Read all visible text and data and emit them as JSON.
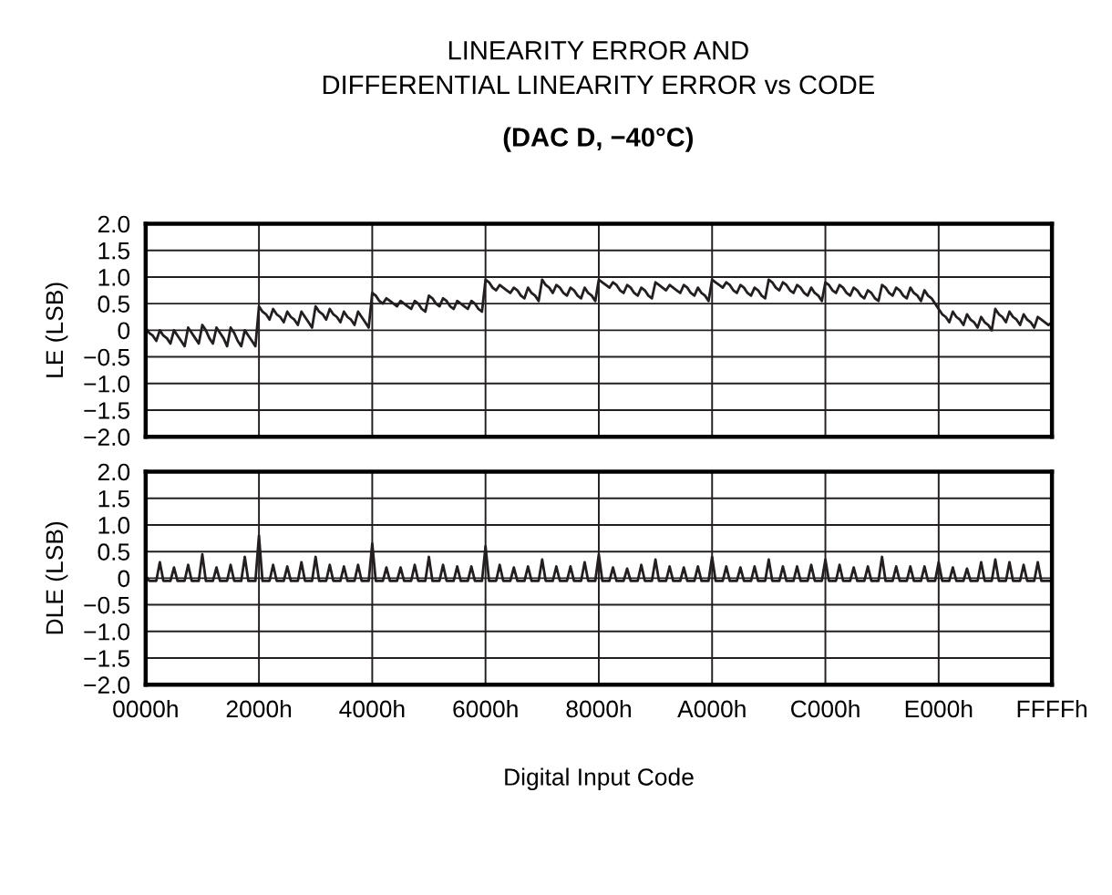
{
  "chart_data": [
    {
      "type": "line",
      "title": "LINEARITY ERROR AND\nDIFFERENTIAL LINEARITY ERROR vs CODE",
      "subtitle": "(DAC D, −40°C)",
      "ylabel": "LE (LSB)",
      "ylim": [
        -2.0,
        2.0
      ],
      "yticks": [
        {
          "value": 2.0,
          "label": "2.0"
        },
        {
          "value": 1.5,
          "label": "1.5"
        },
        {
          "value": 1.0,
          "label": "1.0"
        },
        {
          "value": 0.5,
          "label": "0.5"
        },
        {
          "value": 0,
          "label": "0"
        },
        {
          "value": -0.5,
          "label": "−0.5"
        },
        {
          "value": -1.0,
          "label": "−1.0"
        },
        {
          "value": -1.5,
          "label": "−1.5"
        },
        {
          "value": -2.0,
          "label": "−2.0"
        }
      ],
      "grid": true,
      "tick_labels": "y",
      "categories": [
        null,
        null,
        null,
        null,
        null,
        null,
        null,
        null,
        null,
        null,
        null,
        null,
        null,
        null,
        null,
        null,
        null,
        null,
        null,
        null,
        null,
        null,
        null,
        null,
        null,
        null,
        null,
        null,
        null,
        null,
        null,
        null,
        null,
        null,
        null,
        null,
        null,
        null,
        null,
        null,
        null,
        null,
        null,
        null,
        null,
        null,
        null,
        null,
        null,
        null,
        null,
        null,
        null,
        null,
        null,
        null,
        null,
        null,
        null,
        null,
        null,
        null,
        null,
        null,
        null,
        null,
        null,
        null,
        null,
        null,
        null,
        null,
        null,
        null,
        null,
        null,
        null,
        null,
        null,
        null,
        null,
        null,
        null,
        null,
        null,
        null,
        null,
        null,
        null,
        null,
        null,
        null,
        null,
        null,
        null,
        null,
        null,
        null,
        null,
        null,
        null,
        null,
        null,
        null,
        null,
        null,
        null,
        null,
        null,
        null,
        null,
        null,
        null,
        null,
        null,
        null,
        null,
        null,
        null,
        null,
        null,
        null,
        null,
        null,
        null,
        null,
        null,
        null,
        null,
        null,
        null,
        null,
        null,
        null,
        null,
        null,
        null,
        null,
        null,
        null,
        null,
        null,
        null,
        null,
        null,
        null,
        null,
        null,
        null,
        null,
        null,
        null,
        null,
        null,
        null,
        null,
        null,
        null,
        null,
        null,
        null,
        null,
        null,
        null,
        null,
        null,
        null,
        null,
        null,
        null,
        null,
        null,
        null,
        null,
        null,
        null,
        null,
        null,
        null,
        null,
        null,
        null,
        null,
        null,
        null,
        null,
        null,
        null,
        null,
        null,
        null,
        null,
        null,
        null,
        null,
        null,
        null,
        null,
        null,
        null,
        null,
        null,
        null,
        null,
        null,
        null,
        null,
        null,
        null,
        null,
        null,
        null,
        null,
        null,
        null,
        null,
        null,
        null,
        null,
        null,
        null,
        null,
        null,
        null,
        null,
        null,
        null,
        null,
        null,
        null,
        null,
        null,
        null,
        null,
        null,
        null,
        null,
        null,
        null,
        null,
        null,
        null,
        null,
        null,
        null,
        null,
        null,
        null,
        null,
        null,
        null,
        null,
        null,
        null,
        null,
        null,
        null
      ],
      "series": [
        {
          "color": "#231f20",
          "values": [
            0.05,
            -0.05,
            -0.1,
            -0.2,
            0,
            -0.1,
            -0.15,
            -0.25,
            0.0,
            -0.1,
            -0.2,
            -0.3,
            0.05,
            -0.05,
            -0.15,
            -0.25,
            0.1,
            0,
            -0.15,
            -0.25,
            0.05,
            -0.05,
            -0.15,
            -0.3,
            0.05,
            -0.05,
            -0.2,
            -0.3,
            0.0,
            -0.1,
            -0.2,
            -0.3,
            0.45,
            0.35,
            0.3,
            0.2,
            0.4,
            0.3,
            0.25,
            0.15,
            0.35,
            0.25,
            0.2,
            0.1,
            0.35,
            0.25,
            0.15,
            0.05,
            0.45,
            0.35,
            0.3,
            0.2,
            0.4,
            0.3,
            0.25,
            0.15,
            0.35,
            0.25,
            0.2,
            0.1,
            0.35,
            0.25,
            0.15,
            0.05,
            0.7,
            0.65,
            0.55,
            0.5,
            0.6,
            0.55,
            0.5,
            0.45,
            0.55,
            0.5,
            0.45,
            0.4,
            0.55,
            0.5,
            0.4,
            0.35,
            0.65,
            0.6,
            0.5,
            0.45,
            0.6,
            0.55,
            0.45,
            0.4,
            0.55,
            0.5,
            0.45,
            0.4,
            0.55,
            0.5,
            0.4,
            0.35,
            0.95,
            0.9,
            0.8,
            0.75,
            0.85,
            0.8,
            0.75,
            0.7,
            0.8,
            0.75,
            0.65,
            0.6,
            0.8,
            0.7,
            0.65,
            0.55,
            0.95,
            0.85,
            0.8,
            0.7,
            0.85,
            0.8,
            0.7,
            0.65,
            0.8,
            0.75,
            0.65,
            0.6,
            0.8,
            0.7,
            0.65,
            0.55,
            0.95,
            0.9,
            0.85,
            0.8,
            0.9,
            0.85,
            0.75,
            0.7,
            0.85,
            0.8,
            0.7,
            0.65,
            0.8,
            0.75,
            0.65,
            0.6,
            0.9,
            0.85,
            0.8,
            0.75,
            0.85,
            0.8,
            0.75,
            0.7,
            0.85,
            0.8,
            0.7,
            0.65,
            0.8,
            0.7,
            0.65,
            0.55,
            0.95,
            0.9,
            0.85,
            0.8,
            0.9,
            0.85,
            0.75,
            0.7,
            0.85,
            0.8,
            0.7,
            0.65,
            0.8,
            0.75,
            0.65,
            0.6,
            0.95,
            0.9,
            0.8,
            0.75,
            0.9,
            0.85,
            0.75,
            0.7,
            0.85,
            0.8,
            0.7,
            0.65,
            0.8,
            0.7,
            0.65,
            0.55,
            0.9,
            0.85,
            0.75,
            0.7,
            0.85,
            0.8,
            0.7,
            0.65,
            0.8,
            0.75,
            0.65,
            0.6,
            0.75,
            0.7,
            0.6,
            0.55,
            0.85,
            0.8,
            0.7,
            0.65,
            0.8,
            0.75,
            0.65,
            0.6,
            0.8,
            0.7,
            0.65,
            0.55,
            0.75,
            0.65,
            0.6,
            0.5,
            0.4,
            0.3,
            0.25,
            0.15,
            0.35,
            0.25,
            0.2,
            0.1,
            0.3,
            0.2,
            0.15,
            0.05,
            0.25,
            0.15,
            0.1,
            0.0,
            0.4,
            0.3,
            0.25,
            0.15,
            0.35,
            0.25,
            0.2,
            0.1,
            0.3,
            0.2,
            0.15,
            0.05,
            0.25,
            0.2,
            0.15,
            0.1,
            0.15
          ]
        }
      ]
    },
    {
      "type": "line",
      "xlabel": "Digital Input Code",
      "ylabel": "DLE (LSB)",
      "ylim": [
        -2.0,
        2.0
      ],
      "yticks": [
        {
          "value": 2.0,
          "label": "2.0"
        },
        {
          "value": 1.5,
          "label": "1.5"
        },
        {
          "value": 1.0,
          "label": "1.0"
        },
        {
          "value": 0.5,
          "label": "0.5"
        },
        {
          "value": 0,
          "label": "0"
        },
        {
          "value": -0.5,
          "label": "−0.5"
        },
        {
          "value": -1.0,
          "label": "−1.0"
        },
        {
          "value": -1.5,
          "label": "−1.5"
        },
        {
          "value": -2.0,
          "label": "−2.0"
        }
      ],
      "grid": true,
      "categories": [
        "0000h",
        null,
        null,
        null,
        null,
        null,
        null,
        null,
        null,
        null,
        null,
        null,
        null,
        null,
        null,
        null,
        null,
        null,
        null,
        null,
        null,
        null,
        null,
        null,
        null,
        null,
        null,
        null,
        null,
        null,
        null,
        null,
        "2000h",
        null,
        null,
        null,
        null,
        null,
        null,
        null,
        null,
        null,
        null,
        null,
        null,
        null,
        null,
        null,
        null,
        null,
        null,
        null,
        null,
        null,
        null,
        null,
        null,
        null,
        null,
        null,
        null,
        null,
        null,
        null,
        "4000h",
        null,
        null,
        null,
        null,
        null,
        null,
        null,
        null,
        null,
        null,
        null,
        null,
        null,
        null,
        null,
        null,
        null,
        null,
        null,
        null,
        null,
        null,
        null,
        null,
        null,
        null,
        null,
        null,
        null,
        null,
        null,
        "6000h",
        null,
        null,
        null,
        null,
        null,
        null,
        null,
        null,
        null,
        null,
        null,
        null,
        null,
        null,
        null,
        null,
        null,
        null,
        null,
        null,
        null,
        null,
        null,
        null,
        null,
        null,
        null,
        null,
        null,
        null,
        null,
        "8000h",
        null,
        null,
        null,
        null,
        null,
        null,
        null,
        null,
        null,
        null,
        null,
        null,
        null,
        null,
        null,
        null,
        null,
        null,
        null,
        null,
        null,
        null,
        null,
        null,
        null,
        null,
        null,
        null,
        null,
        null,
        null,
        "A000h",
        null,
        null,
        null,
        null,
        null,
        null,
        null,
        null,
        null,
        null,
        null,
        null,
        null,
        null,
        null,
        null,
        null,
        null,
        null,
        null,
        null,
        null,
        null,
        null,
        null,
        null,
        null,
        null,
        null,
        null,
        null,
        "C000h",
        null,
        null,
        null,
        null,
        null,
        null,
        null,
        null,
        null,
        null,
        null,
        null,
        null,
        null,
        null,
        null,
        null,
        null,
        null,
        null,
        null,
        null,
        null,
        null,
        null,
        null,
        null,
        null,
        null,
        null,
        null,
        "E000h",
        null,
        null,
        null,
        null,
        null,
        null,
        null,
        null,
        null,
        null,
        null,
        null,
        null,
        null,
        null,
        null,
        null,
        null,
        null,
        null,
        null,
        null,
        null,
        null,
        null,
        null,
        null,
        null,
        null,
        null,
        null,
        "FFFFh"
      ],
      "series": [
        {
          "color": "#231f20",
          "values": [
            0.05,
            -0.05,
            -0.05,
            -0.05,
            0.3,
            -0.05,
            -0.05,
            -0.05,
            0.2,
            -0.05,
            -0.05,
            -0.05,
            0.25,
            -0.05,
            -0.05,
            -0.05,
            0.45,
            -0.05,
            -0.05,
            -0.05,
            0.2,
            -0.05,
            -0.05,
            -0.05,
            0.25,
            -0.05,
            -0.05,
            -0.05,
            0.4,
            -0.05,
            -0.05,
            -0.05,
            0.8,
            -0.05,
            -0.05,
            -0.05,
            0.25,
            -0.05,
            -0.05,
            -0.05,
            0.22,
            -0.05,
            -0.05,
            -0.05,
            0.3,
            -0.05,
            -0.05,
            -0.05,
            0.4,
            -0.05,
            -0.05,
            -0.05,
            0.25,
            -0.05,
            -0.05,
            -0.05,
            0.22,
            -0.05,
            -0.05,
            -0.05,
            0.25,
            -0.05,
            -0.05,
            -0.05,
            0.65,
            -0.05,
            -0.05,
            -0.05,
            0.2,
            -0.05,
            -0.05,
            -0.05,
            0.2,
            -0.05,
            -0.05,
            -0.05,
            0.25,
            -0.05,
            -0.05,
            -0.05,
            0.4,
            -0.05,
            -0.05,
            -0.05,
            0.25,
            -0.05,
            -0.05,
            -0.05,
            0.22,
            -0.05,
            -0.05,
            -0.05,
            0.22,
            -0.05,
            -0.05,
            -0.05,
            0.6,
            -0.05,
            -0.05,
            -0.05,
            0.25,
            -0.05,
            -0.05,
            -0.05,
            0.2,
            -0.05,
            -0.05,
            -0.05,
            0.22,
            -0.05,
            -0.05,
            -0.05,
            0.35,
            -0.05,
            -0.05,
            -0.05,
            0.22,
            -0.05,
            -0.05,
            -0.05,
            0.22,
            -0.05,
            -0.05,
            -0.05,
            0.3,
            -0.05,
            -0.05,
            -0.05,
            0.45,
            -0.05,
            -0.05,
            -0.05,
            0.2,
            -0.05,
            -0.05,
            -0.05,
            0.18,
            -0.05,
            -0.05,
            -0.05,
            0.25,
            -0.05,
            -0.05,
            -0.05,
            0.35,
            -0.05,
            -0.05,
            -0.05,
            0.22,
            -0.05,
            -0.05,
            -0.05,
            0.2,
            -0.05,
            -0.05,
            -0.05,
            0.22,
            -0.05,
            -0.05,
            -0.05,
            0.4,
            -0.05,
            -0.05,
            -0.05,
            0.22,
            -0.05,
            -0.05,
            -0.05,
            0.2,
            -0.05,
            -0.05,
            -0.05,
            0.22,
            -0.05,
            -0.05,
            -0.05,
            0.35,
            -0.05,
            -0.05,
            -0.05,
            0.22,
            -0.05,
            -0.05,
            -0.05,
            0.22,
            -0.05,
            -0.05,
            -0.05,
            0.25,
            -0.05,
            -0.05,
            -0.05,
            0.35,
            -0.05,
            -0.05,
            -0.05,
            0.25,
            -0.05,
            -0.05,
            -0.05,
            0.2,
            -0.05,
            -0.05,
            -0.05,
            0.22,
            -0.05,
            -0.05,
            -0.05,
            0.4,
            -0.05,
            -0.05,
            -0.05,
            0.22,
            -0.05,
            -0.05,
            -0.05,
            0.22,
            -0.05,
            -0.05,
            -0.05,
            0.22,
            -0.05,
            -0.05,
            -0.05,
            0.3,
            -0.05,
            -0.05,
            -0.05,
            0.2,
            -0.05,
            -0.05,
            -0.05,
            0.18,
            -0.05,
            -0.05,
            -0.05,
            0.3,
            -0.05,
            -0.05,
            -0.05,
            0.35,
            -0.05,
            -0.05,
            -0.05,
            0.3,
            -0.05,
            -0.05,
            -0.05,
            0.25,
            -0.05,
            -0.05,
            -0.05,
            0.3,
            -0.05,
            -0.05,
            -0.05,
            -0.05
          ]
        }
      ]
    }
  ]
}
